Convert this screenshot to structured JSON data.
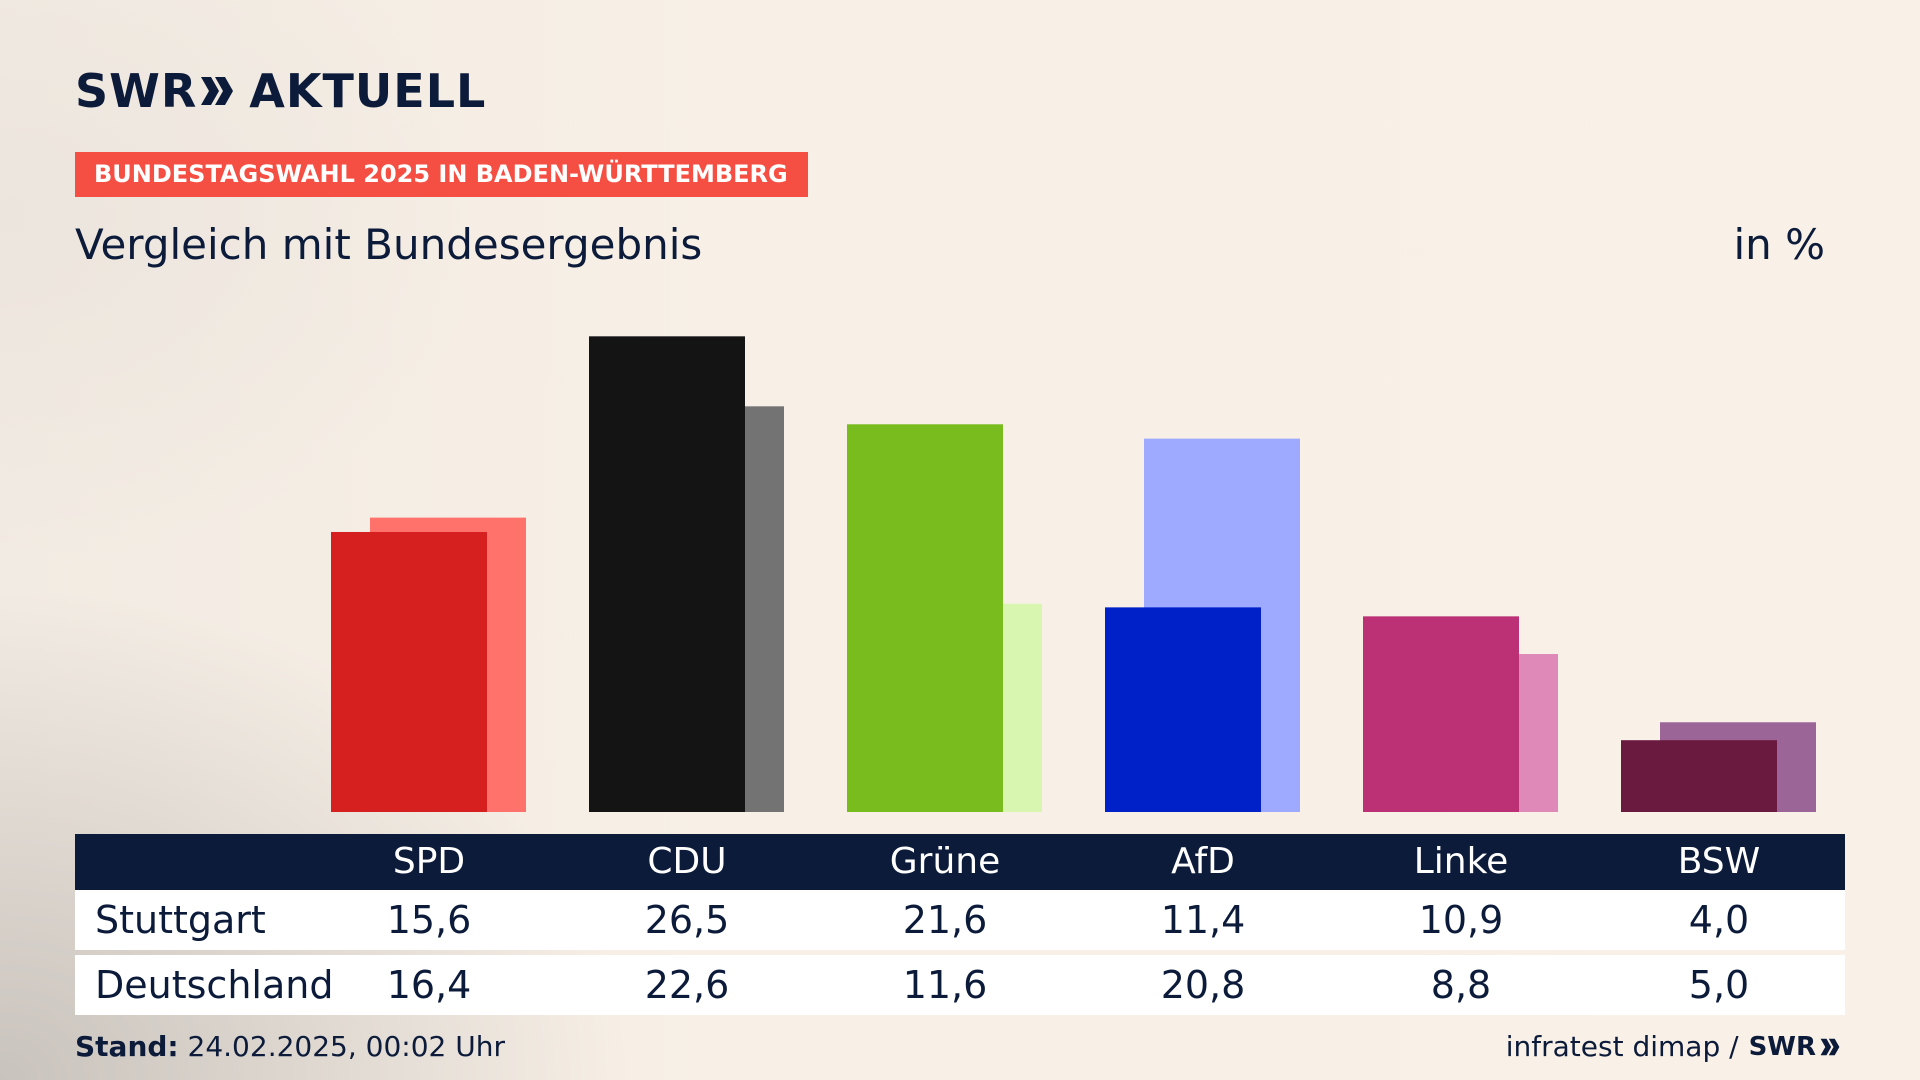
{
  "logo": {
    "left": "SWR",
    "right": "AKTUELL"
  },
  "banner": "BUNDESTAGSWAHL 2025 IN BADEN-WÜRTTEMBERG",
  "subtitle": "Vergleich mit Bundesergebnis",
  "unit": "in %",
  "colors": {
    "accent": "#f54f43",
    "navy": "#0c1b3a"
  },
  "chart_data": {
    "type": "bar",
    "title": "Vergleich mit Bundesergebnis",
    "ylabel": "in %",
    "ylim": [
      0,
      30
    ],
    "categories": [
      "SPD",
      "CDU",
      "Grüne",
      "AfD",
      "Linke",
      "BSW"
    ],
    "series": [
      {
        "name": "Stuttgart",
        "values": [
          15.6,
          26.5,
          21.6,
          11.4,
          10.9,
          4.0
        ],
        "labels": [
          "15,6",
          "26,5",
          "21,6",
          "11,4",
          "10,9",
          "4,0"
        ],
        "colors": [
          "#d6201f",
          "#141414",
          "#78bc1e",
          "#0020c8",
          "#bc3075",
          "#6b1a3f"
        ]
      },
      {
        "name": "Deutschland",
        "values": [
          16.4,
          22.6,
          11.6,
          20.8,
          8.8,
          5.0
        ],
        "labels": [
          "16,4",
          "22,6",
          "11,6",
          "20,8",
          "8,8",
          "5,0"
        ],
        "colors": [
          "#ff726c",
          "#737373",
          "#d9f6b1",
          "#9eaaff",
          "#df89b8",
          "#9b6598"
        ]
      }
    ]
  },
  "table": {
    "row_labels": [
      "Stuttgart",
      "Deutschland"
    ]
  },
  "footer": {
    "stand_label": "Stand:",
    "stand_value": "24.02.2025, 00:02 Uhr",
    "source": "infratest dimap /",
    "source_logo": "SWR"
  }
}
